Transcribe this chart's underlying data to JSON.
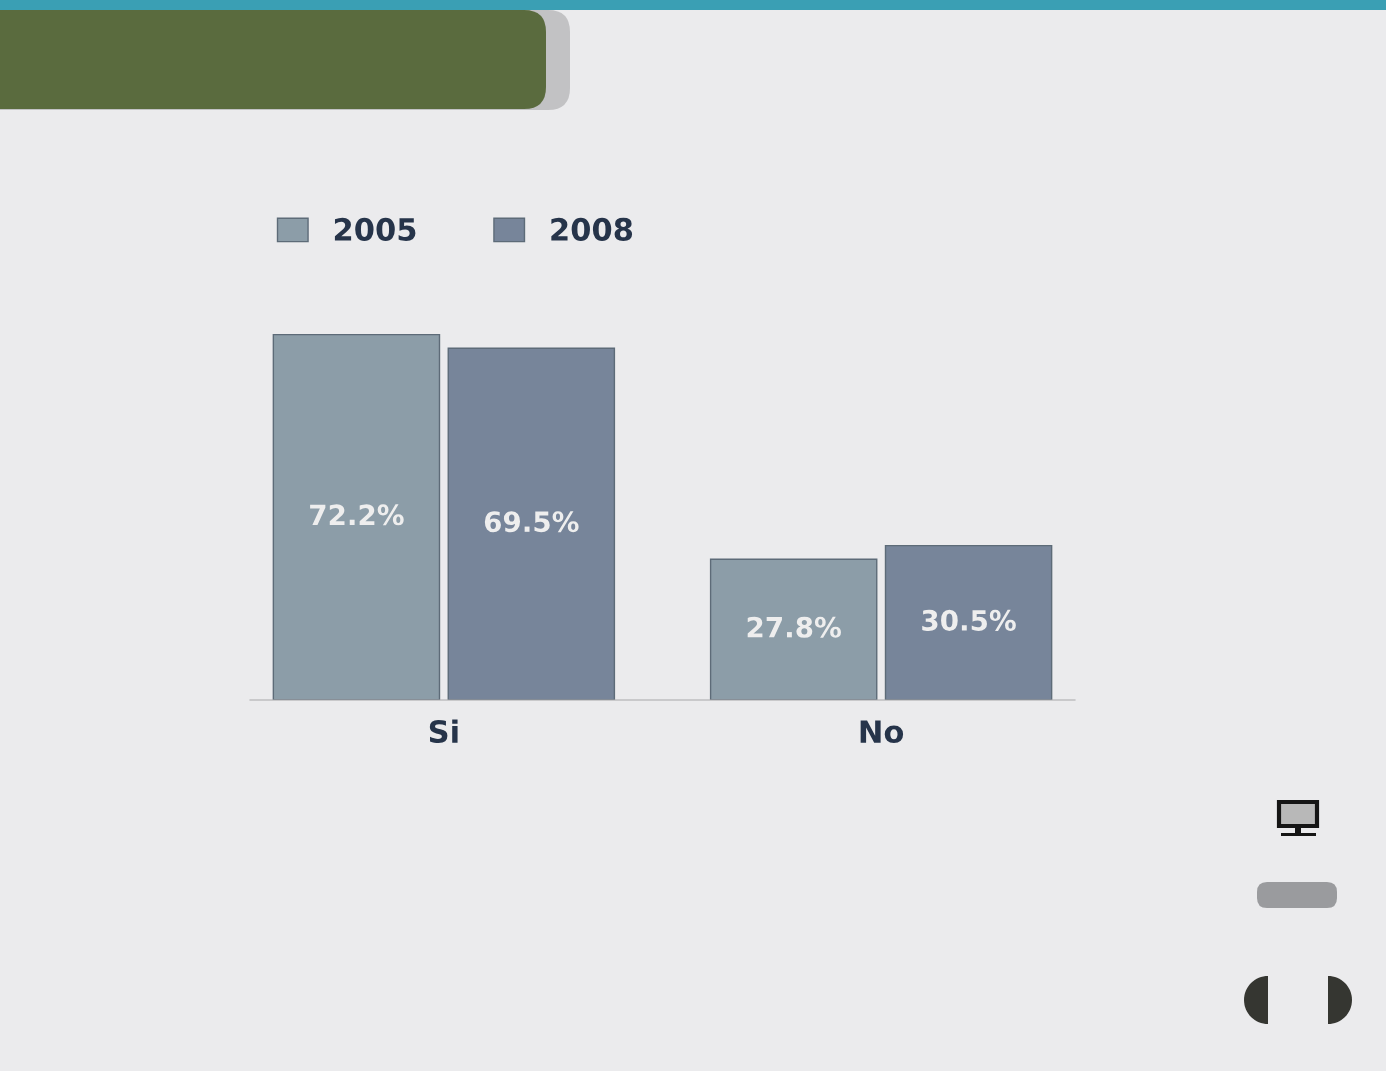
{
  "chart_data": {
    "type": "bar",
    "categories": [
      "Si",
      "No"
    ],
    "series": [
      {
        "name": "2005",
        "color": "#8c9da8",
        "values": [
          72.2,
          27.8
        ],
        "value_labels": [
          "72.2%",
          "27.8%"
        ]
      },
      {
        "name": "2008",
        "color": "#77859a",
        "values": [
          69.5,
          30.5
        ],
        "value_labels": [
          "69.5%",
          "30.5%"
        ]
      }
    ],
    "legend": "top left",
    "grid": false,
    "tick_labels": "x"
  }
}
